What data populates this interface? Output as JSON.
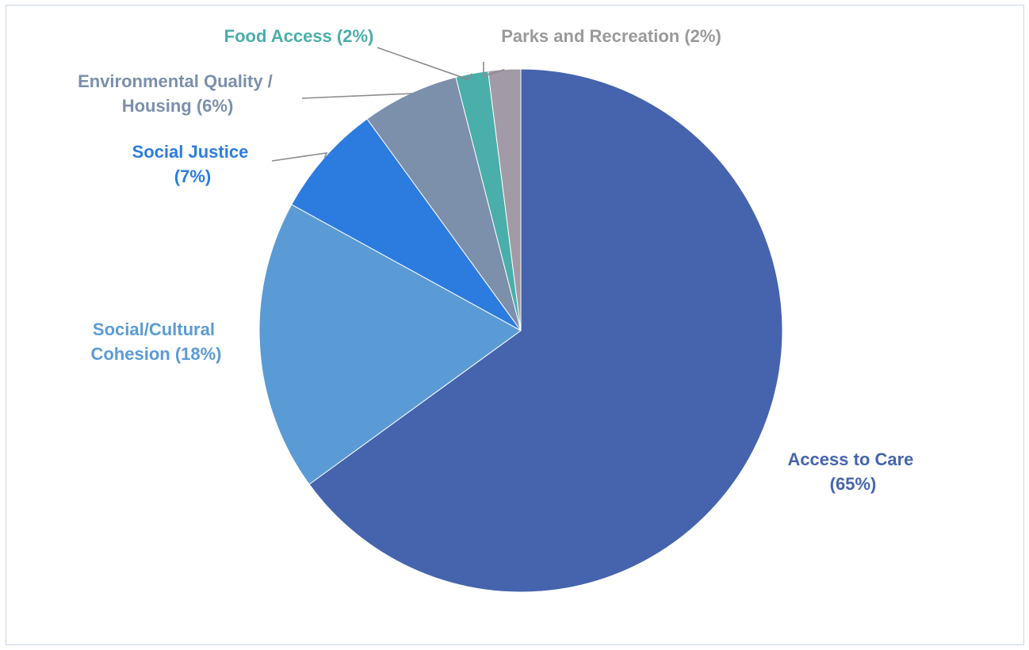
{
  "chart_data": {
    "type": "pie",
    "title": "",
    "start_angle_deg": 0,
    "direction": "clockwise",
    "slices": [
      {
        "label": "Access to Care",
        "pct_text": "(65%)",
        "value": 65,
        "color": "#4664ad",
        "label_color": "#4664ad"
      },
      {
        "label": "Social/Cultural",
        "label2": "Cohesion (18%)",
        "pct_text": "",
        "value": 18,
        "color": "#5b9bd5",
        "label_color": "#5b9bd5"
      },
      {
        "label": "Social Justice",
        "pct_text": "(7%)",
        "value": 7,
        "color": "#2c7ce0",
        "label_color": "#2c7ce0"
      },
      {
        "label": "Environmental Quality /",
        "label2": "Housing (6%)",
        "pct_text": "",
        "value": 6,
        "color": "#7c8fab",
        "label_color": "#7c8fab"
      },
      {
        "label": "Food Access (2%)",
        "pct_text": "",
        "value": 2,
        "color": "#4aaeaa",
        "label_color": "#4aaeaa"
      },
      {
        "label": "Parks and Recreation (2%)",
        "pct_text": "",
        "value": 2,
        "color": "#a29aa6",
        "label_color": "#9a9a9a"
      }
    ],
    "legend": "none (direct labels)"
  }
}
